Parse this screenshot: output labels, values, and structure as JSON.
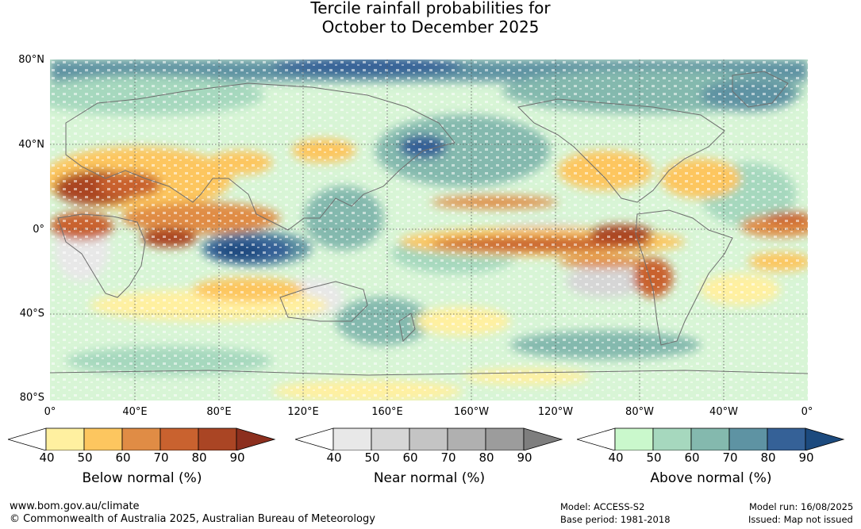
{
  "title": {
    "line1": "Tercile rainfall probabilities for",
    "line2": "October to December 2025"
  },
  "lat_labels": [
    "80°N",
    "40°N",
    "0°",
    "40°S",
    "80°S"
  ],
  "lon_labels": [
    "0°",
    "40°E",
    "80°E",
    "120°E",
    "160°E",
    "160°W",
    "120°W",
    "80°W",
    "40°W",
    "0°"
  ],
  "colorbars": [
    {
      "name": "below",
      "title": "Below normal (%)",
      "ticks": [
        "40",
        "50",
        "60",
        "70",
        "80",
        "90"
      ],
      "colors": [
        "#fff0a0",
        "#fdc65f",
        "#e08c45",
        "#c9622f",
        "#aa4524",
        "#8c2f1e"
      ]
    },
    {
      "name": "near",
      "title": "Near normal (%)",
      "ticks": [
        "40",
        "50",
        "60",
        "70",
        "80",
        "90"
      ],
      "colors": [
        "#e8e8e8",
        "#d6d6d6",
        "#c4c4c4",
        "#b0b0b0",
        "#9c9c9c",
        "#7e7e7e"
      ]
    },
    {
      "name": "above",
      "title": "Above normal (%)",
      "ticks": [
        "40",
        "50",
        "60",
        "70",
        "80",
        "90"
      ],
      "colors": [
        "#caf8cc",
        "#a6d8be",
        "#84b9ae",
        "#5e93a3",
        "#356197",
        "#1c4a7e"
      ]
    }
  ],
  "footer": {
    "website": "www.bom.gov.au/climate",
    "copyright": "© Commonwealth of Australia 2025, Australian Bureau of Meteorology",
    "model": "Model: ACCESS-S2",
    "base_period": "Base period: 1981-2018",
    "model_run": "Model run: 16/08/2025",
    "issued": "Issued: Map not issued"
  }
}
